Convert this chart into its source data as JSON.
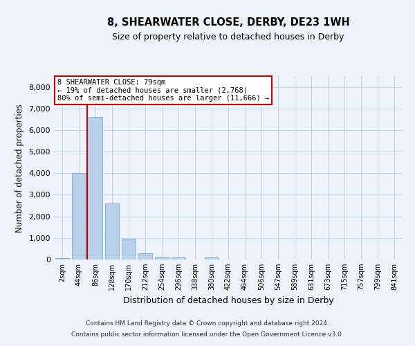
{
  "title1": "8, SHEARWATER CLOSE, DERBY, DE23 1WH",
  "title2": "Size of property relative to detached houses in Derby",
  "xlabel": "Distribution of detached houses by size in Derby",
  "ylabel": "Number of detached properties",
  "categories": [
    "2sqm",
    "44sqm",
    "86sqm",
    "128sqm",
    "170sqm",
    "212sqm",
    "254sqm",
    "296sqm",
    "338sqm",
    "380sqm",
    "422sqm",
    "464sqm",
    "506sqm",
    "547sqm",
    "589sqm",
    "631sqm",
    "673sqm",
    "715sqm",
    "757sqm",
    "799sqm",
    "841sqm"
  ],
  "bar_heights": [
    75,
    4000,
    6600,
    2600,
    950,
    300,
    120,
    105,
    0,
    90,
    0,
    0,
    0,
    0,
    0,
    0,
    0,
    0,
    0,
    0,
    0
  ],
  "bar_color": "#b8d0ea",
  "bar_edge_color": "#7aacd4",
  "grid_color": "#c8d8ec",
  "background_color": "#eef2f9",
  "annotation_line1": "8 SHEARWATER CLOSE: 79sqm",
  "annotation_line2": "← 19% of detached houses are smaller (2,768)",
  "annotation_line3": "80% of semi-detached houses are larger (11,666) →",
  "annotation_box_color": "#ffffff",
  "annotation_box_edge": "#cc0000",
  "property_line_color": "#cc0000",
  "footer1": "Contains HM Land Registry data © Crown copyright and database right 2024.",
  "footer2": "Contains public sector information licensed under the Open Government Licence v3.0.",
  "ylim": [
    0,
    8500
  ],
  "yticks": [
    0,
    1000,
    2000,
    3000,
    4000,
    5000,
    6000,
    7000,
    8000
  ],
  "figsize": [
    6.0,
    5.0
  ],
  "dpi": 100
}
